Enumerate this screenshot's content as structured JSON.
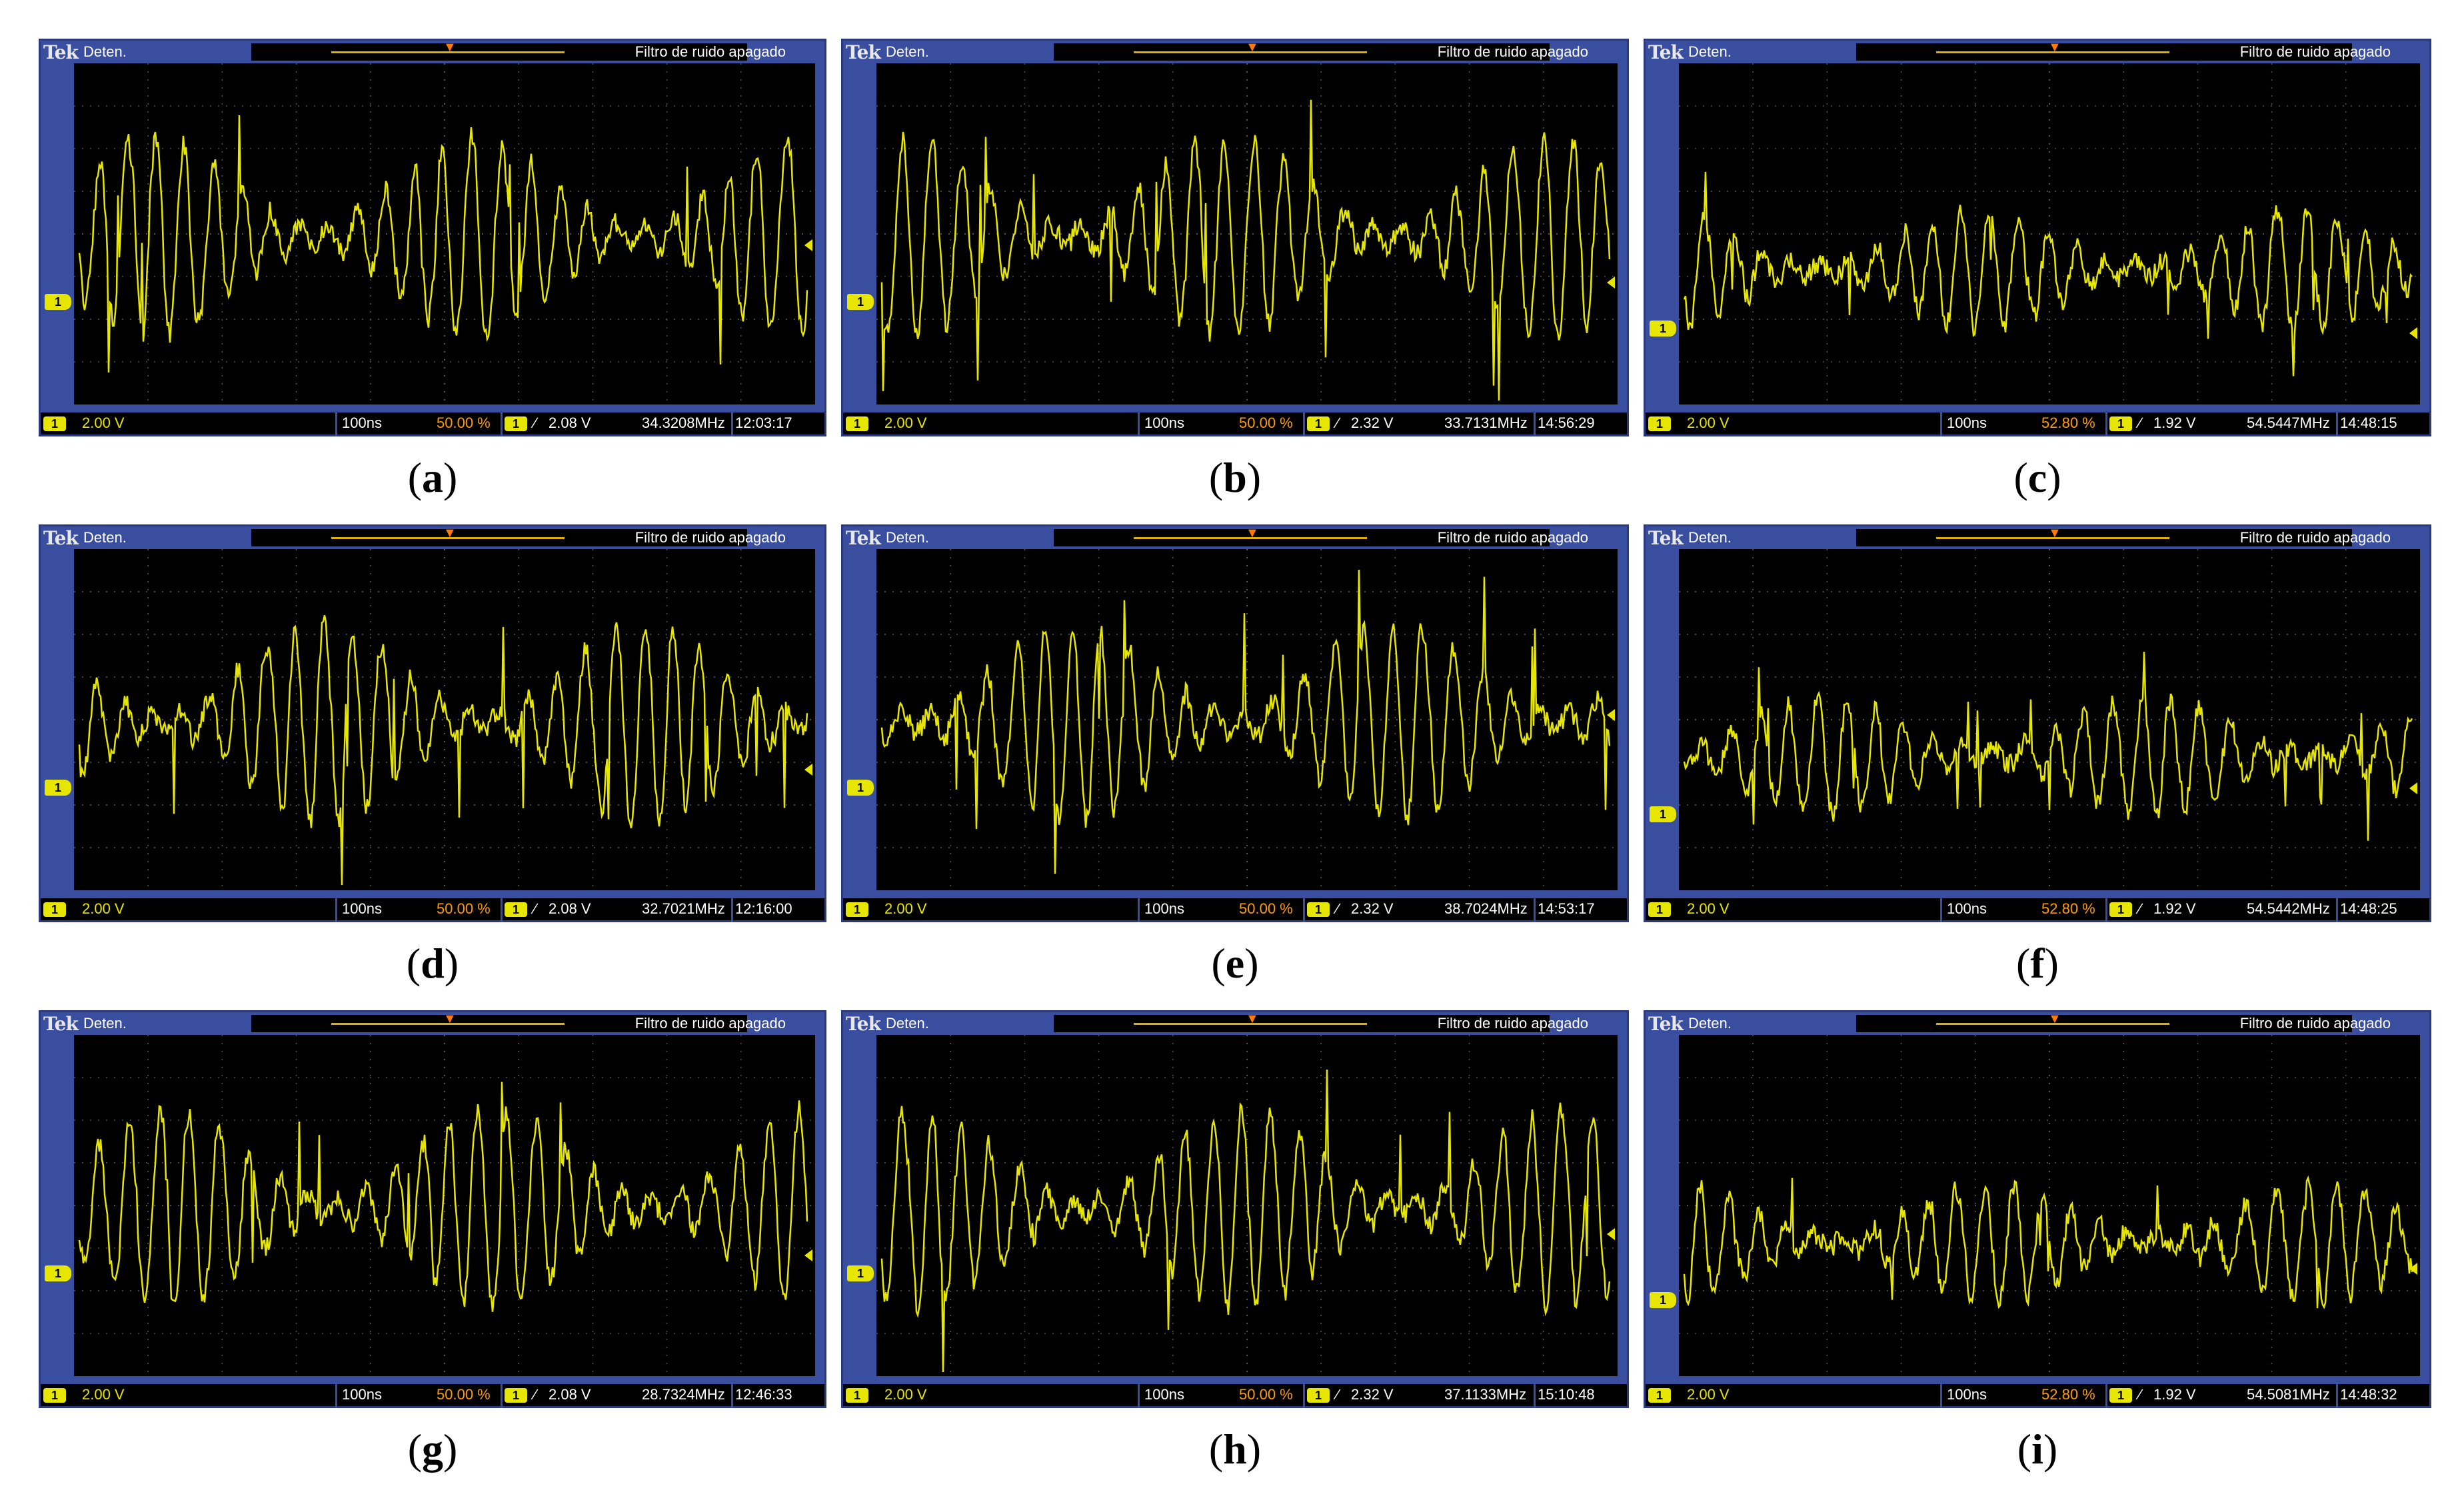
{
  "colors": {
    "bezel": "#3a4ea0",
    "trace": "#e6e600",
    "orange": "#ff9c00"
  },
  "panels": [
    {
      "caption_letter": "a",
      "brand": "Tek",
      "state": "Deten.",
      "noise_filter": "Filtro de ruido apagado",
      "channel": "1",
      "volts": "2.00 V",
      "timebase": "100ns",
      "trigger_pos": "50.00 %",
      "trigger_level": "2.08 V",
      "frequency": "34.3208MHz",
      "time": "12:03:17"
    },
    {
      "caption_letter": "b",
      "brand": "Tek",
      "state": "Deten.",
      "noise_filter": "Filtro de ruido apagado",
      "channel": "1",
      "volts": "2.00 V",
      "timebase": "100ns",
      "trigger_pos": "50.00 %",
      "trigger_level": "2.32 V",
      "frequency": "33.7131MHz",
      "time": "14:56:29"
    },
    {
      "caption_letter": "c",
      "brand": "Tek",
      "state": "Deten.",
      "noise_filter": "Filtro de ruido apagado",
      "channel": "1",
      "volts": "2.00 V",
      "timebase": "100ns",
      "trigger_pos": "52.80 %",
      "trigger_level": "1.92 V",
      "frequency": "54.5447MHz",
      "time": "14:48:15"
    },
    {
      "caption_letter": "d",
      "brand": "Tek",
      "state": "Deten.",
      "noise_filter": "Filtro de ruido apagado",
      "channel": "1",
      "volts": "2.00 V",
      "timebase": "100ns",
      "trigger_pos": "50.00 %",
      "trigger_level": "2.08 V",
      "frequency": "32.7021MHz",
      "time": "12:16:00"
    },
    {
      "caption_letter": "e",
      "brand": "Tek",
      "state": "Deten.",
      "noise_filter": "Filtro de ruido apagado",
      "channel": "1",
      "volts": "2.00 V",
      "timebase": "100ns",
      "trigger_pos": "50.00 %",
      "trigger_level": "2.32 V",
      "frequency": "38.7024MHz",
      "time": "14:53:17"
    },
    {
      "caption_letter": "f",
      "brand": "Tek",
      "state": "Deten.",
      "noise_filter": "Filtro de ruido apagado",
      "channel": "1",
      "volts": "2.00 V",
      "timebase": "100ns",
      "trigger_pos": "52.80 %",
      "trigger_level": "1.92 V",
      "frequency": "54.5442MHz",
      "time": "14:48:25"
    },
    {
      "caption_letter": "g",
      "brand": "Tek",
      "state": "Deten.",
      "noise_filter": "Filtro de ruido apagado",
      "channel": "1",
      "volts": "2.00 V",
      "timebase": "100ns",
      "trigger_pos": "50.00 %",
      "trigger_level": "2.08 V",
      "frequency": "28.7324MHz",
      "time": "12:46:33"
    },
    {
      "caption_letter": "h",
      "brand": "Tek",
      "state": "Deten.",
      "noise_filter": "Filtro de ruido apagado",
      "channel": "1",
      "volts": "2.00 V",
      "timebase": "100ns",
      "trigger_pos": "50.00 %",
      "trigger_level": "2.32 V",
      "frequency": "37.1133MHz",
      "time": "15:10:48"
    },
    {
      "caption_letter": "i",
      "brand": "Tek",
      "state": "Deten.",
      "noise_filter": "Filtro de ruido apagado",
      "channel": "1",
      "volts": "2.00 V",
      "timebase": "100ns",
      "trigger_pos": "52.80 %",
      "trigger_level": "1.92 V",
      "frequency": "54.5081MHz",
      "time": "14:48:32"
    }
  ]
}
